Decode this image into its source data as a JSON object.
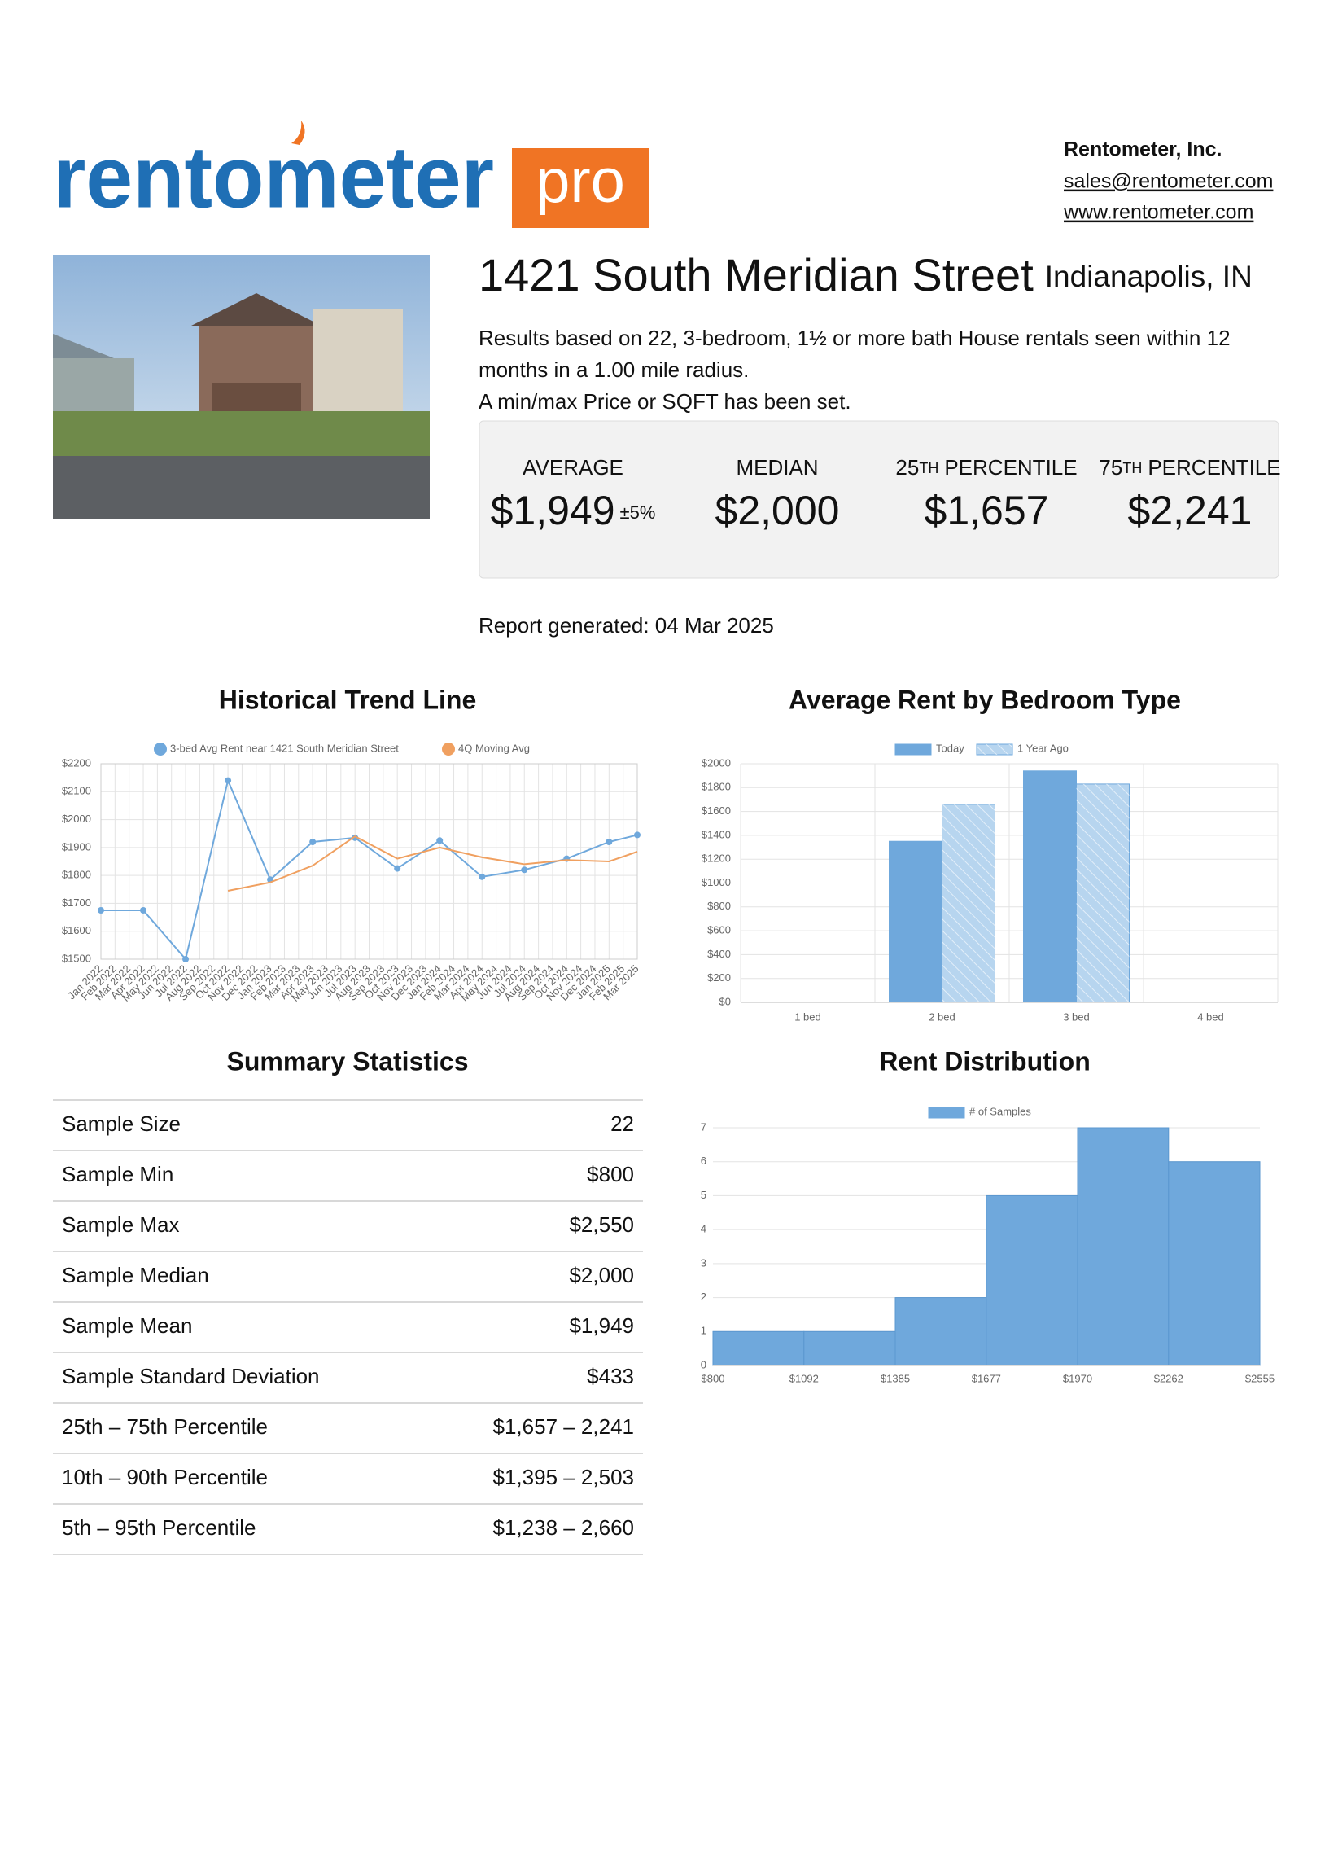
{
  "logo": {
    "brand": "rentometer",
    "badge": "pro"
  },
  "company": {
    "name": "Rentometer, Inc.",
    "email": "sales@rentometer.com",
    "website": "www.rentometer.com"
  },
  "property": {
    "address": "1421 South Meridian Street",
    "city": "Indianapolis, IN",
    "description": [
      "Results based on 22, 3-bedroom, 1½ or more bath House rentals seen within 12",
      "months in a 1.00 mile radius.",
      "A min/max Price or SQFT has been set."
    ]
  },
  "stats": [
    {
      "label": "AVERAGE",
      "value": "$1,949",
      "note": "±5%"
    },
    {
      "label": "MEDIAN",
      "value": "$2,000"
    },
    {
      "label_number": "25",
      "label_suffix": "TH",
      "label": "PERCENTILE",
      "value": "$1,657"
    },
    {
      "label_number": "75",
      "label_suffix": "TH",
      "label": "PERCENTILE",
      "value": "$2,241"
    }
  ],
  "report_generated": "Report generated: 04 Mar 2025",
  "summary": {
    "title": "Summary Statistics",
    "rows": [
      [
        "Sample Size",
        "22"
      ],
      [
        "Sample Min",
        "$800"
      ],
      [
        "Sample Max",
        "$2,550"
      ],
      [
        "Sample Median",
        "$2,000"
      ],
      [
        "Sample Mean",
        "$1,949"
      ],
      [
        "Sample Standard Deviation",
        "$433"
      ],
      [
        "25th – 75th Percentile",
        "$1,657 – 2,241"
      ],
      [
        "10th – 90th Percentile",
        "$1,395 – 2,503"
      ],
      [
        "5th – 95th Percentile",
        "$1,238 – 2,660"
      ]
    ]
  },
  "chart_data": [
    {
      "type": "line",
      "title": "Historical Trend Line",
      "categories": [
        "Jan 2022",
        "Feb 2022",
        "Mar 2022",
        "Apr 2022",
        "May 2022",
        "Jun 2022",
        "Jul 2022",
        "Aug 2022",
        "Sep 2022",
        "Oct 2022",
        "Nov 2022",
        "Dec 2022",
        "Jan 2023",
        "Feb 2023",
        "Mar 2023",
        "Apr 2023",
        "May 2023",
        "Jun 2023",
        "Jul 2023",
        "Aug 2023",
        "Sep 2023",
        "Oct 2023",
        "Nov 2023",
        "Dec 2023",
        "Jan 2024",
        "Feb 2024",
        "Mar 2024",
        "Apr 2024",
        "May 2024",
        "Jun 2024",
        "Jul 2024",
        "Aug 2024",
        "Sep 2024",
        "Oct 2024",
        "Nov 2024",
        "Dec 2024",
        "Jan 2025",
        "Feb 2025",
        "Mar 2025"
      ],
      "series": [
        {
          "name": "3-bed Avg Rent near 1421 South Meridian Street",
          "color": "#6fa8dc",
          "markers": true,
          "x": [
            "Jan 2022",
            "Apr 2022",
            "Jul 2022",
            "Oct 2022",
            "Jan 2023",
            "Apr 2023",
            "Jul 2023",
            "Oct 2023",
            "Jan 2024",
            "Apr 2024",
            "Jul 2024",
            "Oct 2024",
            "Jan 2025",
            "Mar 2025"
          ],
          "values": [
            1675,
            1675,
            1500,
            2140,
            1785,
            1920,
            1935,
            1825,
            1925,
            1795,
            1820,
            1860,
            1920,
            1945
          ]
        },
        {
          "name": "4Q Moving Avg",
          "color": "#f0a060",
          "markers": false,
          "x": [
            "Oct 2022",
            "Jan 2023",
            "Apr 2023",
            "Jul 2023",
            "Oct 2023",
            "Jan 2024",
            "Apr 2024",
            "Jul 2024",
            "Oct 2024",
            "Jan 2025",
            "Mar 2025"
          ],
          "values": [
            1745,
            1775,
            1835,
            1940,
            1860,
            1900,
            1865,
            1840,
            1855,
            1850,
            1885
          ]
        }
      ],
      "ylim": [
        1500,
        2200
      ],
      "yticks": [
        {
          "value": 1500,
          "label": "$1500"
        },
        {
          "value": 1600,
          "label": "$1600"
        },
        {
          "value": 1700,
          "label": "$1700"
        },
        {
          "value": 1800,
          "label": "$1800"
        },
        {
          "value": 1900,
          "label": "$1900"
        },
        {
          "value": 2000,
          "label": "$2000"
        },
        {
          "value": 2100,
          "label": "$2100"
        },
        {
          "value": 2200,
          "label": "$2200"
        }
      ],
      "grid": true
    },
    {
      "type": "bar",
      "title": "Average Rent by Bedroom Type",
      "categories": [
        "1 bed",
        "2 bed",
        "3 bed",
        "4 bed"
      ],
      "series": [
        {
          "name": "Today",
          "color": "#6fa8dc",
          "hatch": false,
          "values": [
            null,
            1350,
            1940,
            null
          ]
        },
        {
          "name": "1 Year Ago",
          "color": "#b7d5ef",
          "hatch": true,
          "values": [
            null,
            1660,
            1830,
            null
          ]
        }
      ],
      "ylim": [
        0,
        2000
      ],
      "yticks": [
        {
          "value": 0,
          "label": "$0"
        },
        {
          "value": 200,
          "label": "$200"
        },
        {
          "value": 400,
          "label": "$400"
        },
        {
          "value": 600,
          "label": "$600"
        },
        {
          "value": 800,
          "label": "$800"
        },
        {
          "value": 1000,
          "label": "$1000"
        },
        {
          "value": 1200,
          "label": "$1200"
        },
        {
          "value": 1400,
          "label": "$1400"
        },
        {
          "value": 1600,
          "label": "$1600"
        },
        {
          "value": 1800,
          "label": "$1800"
        },
        {
          "value": 2000,
          "label": "$2000"
        }
      ],
      "grid": true
    },
    {
      "type": "histogram",
      "title": "Rent Distribution",
      "bins": [
        {
          "value": 800,
          "label": "$800"
        },
        {
          "value": 1092,
          "label": "$1092"
        },
        {
          "value": 1385,
          "label": "$1385"
        },
        {
          "value": 1677,
          "label": "$1677"
        },
        {
          "value": 1970,
          "label": "$1970"
        },
        {
          "value": 2262,
          "label": "$2262"
        },
        {
          "value": 2555,
          "label": "$2555"
        }
      ],
      "series": [
        {
          "name": "# of Samples",
          "color": "#6fa8dc",
          "values": [
            1,
            1,
            2,
            5,
            7,
            6
          ]
        }
      ],
      "ylim": [
        0,
        7
      ],
      "yticks": [
        0,
        1,
        2,
        3,
        4,
        5,
        6,
        7
      ],
      "grid": true
    }
  ]
}
